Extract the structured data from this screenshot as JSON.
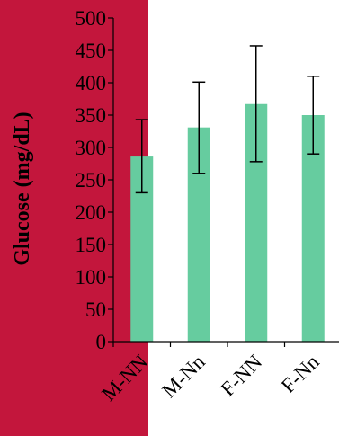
{
  "chart_data": {
    "type": "bar",
    "categories": [
      "M-NN",
      "M-Nn",
      "F-NN",
      "F-Nn"
    ],
    "values": [
      286,
      331,
      367,
      350
    ],
    "error_upper": [
      343,
      401,
      457,
      410
    ],
    "error_lower": [
      230,
      260,
      278,
      290
    ],
    "ylabel": "Glucose (mg/dL)",
    "ylim": [
      0,
      500
    ],
    "yticks": [
      "0",
      "50",
      "100",
      "150",
      "200",
      "250",
      "300",
      "350",
      "400",
      "450",
      "500"
    ],
    "grid": false,
    "legend": "none"
  },
  "colors": {
    "bar": "#66cc9f",
    "left_band": "#c3163c",
    "axis": "#000000"
  }
}
